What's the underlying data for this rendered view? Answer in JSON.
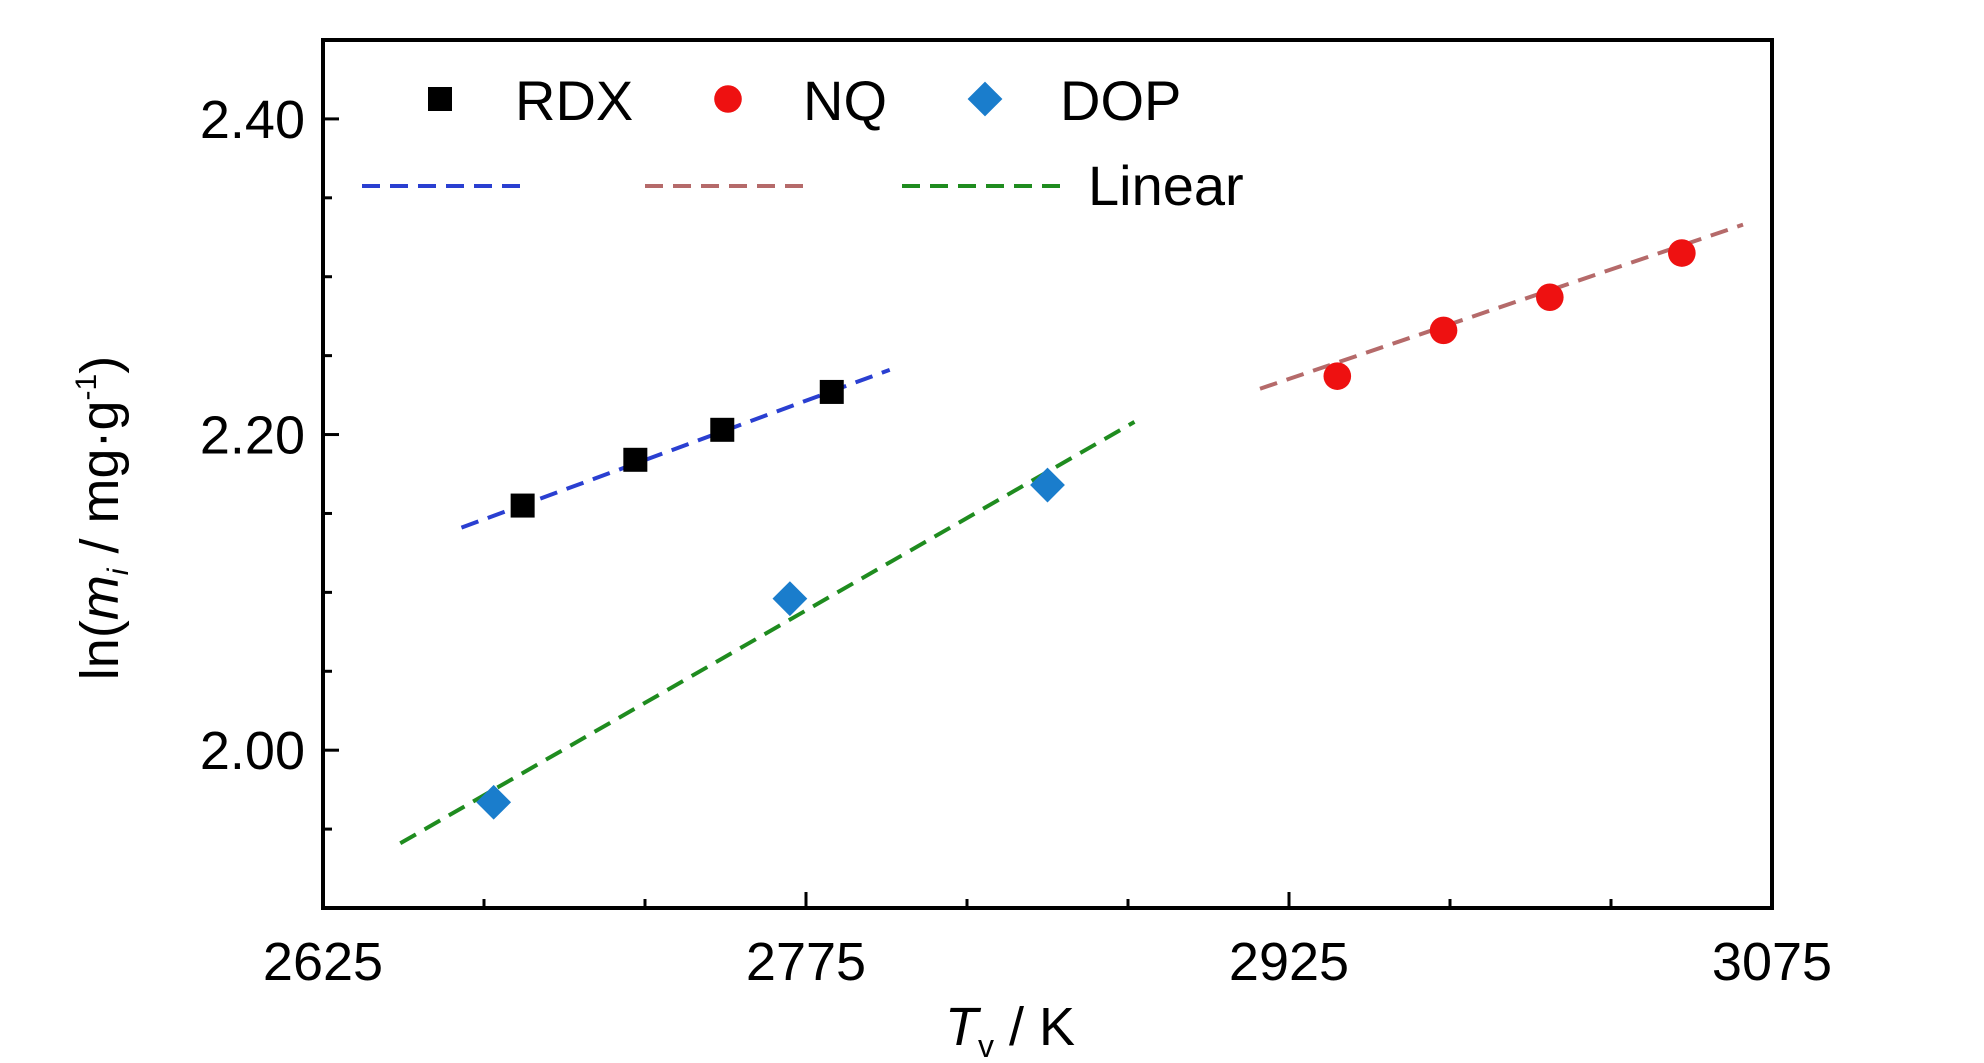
{
  "chart_data": {
    "type": "scatter",
    "xlabel": {
      "main": "T",
      "sub": "v",
      "suffix": " / K"
    },
    "ylabel": {
      "prefix": "ln(",
      "italic": "m",
      "sub": "i",
      "middle": " / mg·g",
      "sup": "-1",
      "suffix": ")"
    },
    "xlim": [
      2625,
      3075
    ],
    "ylim": [
      1.9,
      2.45
    ],
    "xticks": [
      2625,
      2775,
      2925,
      3075
    ],
    "xtick_labels": [
      "2625",
      "2775",
      "2925",
      "3075"
    ],
    "yticks": [
      2.0,
      2.2,
      2.4
    ],
    "ytick_labels": [
      "2.00",
      "2.20",
      "2.40"
    ],
    "x_minor_step": 50,
    "y_minor_step": 0.05,
    "grid": false,
    "legend_placement": "top-left",
    "linear_label": "Linear",
    "series": [
      {
        "name": "RDX",
        "marker": "square",
        "color": "#000000",
        "fit_color": "#2a3fd1",
        "x": [
          2687,
          2722,
          2749,
          2783
        ],
        "y": [
          2.155,
          2.184,
          2.203,
          2.227
        ],
        "fit": {
          "x": [
            2668,
            2801
          ],
          "y": [
            2.141,
            2.241
          ]
        }
      },
      {
        "name": "NQ",
        "marker": "circle",
        "color": "#ee1111",
        "fit_color": "#b56a6a",
        "x": [
          2940,
          2973,
          3006,
          3047
        ],
        "y": [
          2.237,
          2.266,
          2.287,
          2.315
        ],
        "fit": {
          "x": [
            2916,
            3066
          ],
          "y": [
            2.229,
            2.333
          ]
        }
      },
      {
        "name": "DOP",
        "marker": "diamond",
        "color": "#1a7dcc",
        "fit_color": "#1f8c1f",
        "x": [
          2678,
          2770,
          2850
        ],
        "y": [
          1.967,
          2.096,
          2.168
        ],
        "fit": {
          "x": [
            2649,
            2877
          ],
          "y": [
            1.941,
            2.208
          ]
        }
      }
    ]
  }
}
